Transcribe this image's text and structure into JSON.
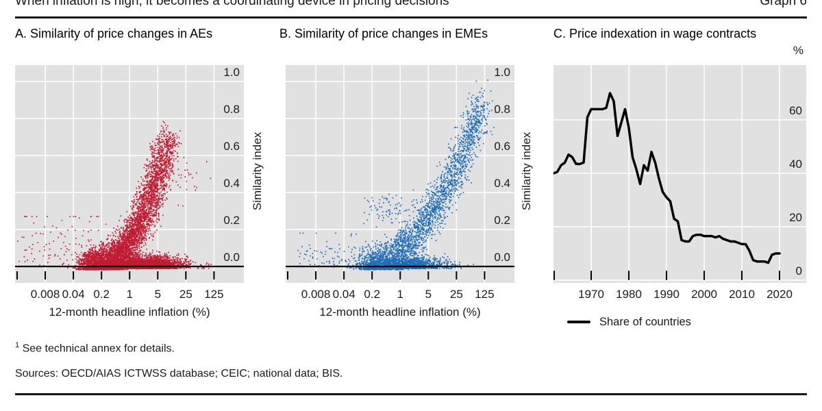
{
  "header": {
    "title": "When inflation is high, it becomes a coordinating device in pricing decisions",
    "graph_label": "Graph 6"
  },
  "chart_data": [
    {
      "id": "A",
      "type": "scatter",
      "title": "A. Similarity of price changes in AEs",
      "color": "#c11b34",
      "xlabel": "12-month headline inflation (%)",
      "ylabel": "Similarity index",
      "xscale": "log",
      "xtick_labels": [
        "0.008",
        "0.04",
        "0.2",
        "1",
        "5",
        "25",
        "125"
      ],
      "xlim": [
        0.0016,
        625
      ],
      "yticks": [
        "0.0",
        "0.2",
        "0.4",
        "0.6",
        "0.8",
        "1.0"
      ],
      "ylim": [
        -0.07,
        1.09
      ],
      "grid": true,
      "n_points_approx": 8500,
      "trend_profile": [
        {
          "x": 0.2,
          "y": 0.02
        },
        {
          "x": 1,
          "y": 0.06
        },
        {
          "x": 2,
          "y": 0.14
        },
        {
          "x": 5,
          "y": 0.33
        },
        {
          "x": 8,
          "y": 0.55
        },
        {
          "x": 10,
          "y": 0.7
        }
      ],
      "generator": {
        "seed": 11,
        "clusters": [
          {
            "kind": "arm",
            "n": 5200,
            "t_pow": 1.15,
            "lx0": -1.05,
            "lx_span": 2.0,
            "lx_sd": 0.16,
            "y_max": 0.7,
            "y_pow": 2.6,
            "y_sd": 0.045
          },
          {
            "kind": "floor",
            "n": 3200,
            "lx_mean": 0.35,
            "lx_sd": 0.5,
            "y_sd": 0.03
          },
          {
            "kind": "spray",
            "n": 110,
            "lx_min": -2.85,
            "lx_max": -0.55,
            "y_sd": 0.085,
            "y_cap": 0.27
          },
          {
            "kind": "blob",
            "n": 28,
            "lx_mean": 1.38,
            "lx_sd": 0.2,
            "y_mean": 0.47,
            "y_sd": 0.055
          }
        ]
      }
    },
    {
      "id": "B",
      "type": "scatter",
      "title": "B. Similarity of price changes in EMEs",
      "color": "#1e6cb5",
      "xlabel": "12-month headline inflation (%)",
      "ylabel": "Similarity index",
      "xscale": "log",
      "xtick_labels": [
        "0.008",
        "0.04",
        "0.2",
        "1",
        "5",
        "25",
        "125"
      ],
      "xlim": [
        0.0016,
        625
      ],
      "yticks": [
        "0.0",
        "0.2",
        "0.4",
        "0.6",
        "0.8",
        "1.0"
      ],
      "ylim": [
        -0.07,
        1.09
      ],
      "grid": true,
      "n_points_approx": 4200,
      "trend_profile": [
        {
          "x": 0.2,
          "y": 0.03
        },
        {
          "x": 1,
          "y": 0.1
        },
        {
          "x": 5,
          "y": 0.27
        },
        {
          "x": 25,
          "y": 0.55
        },
        {
          "x": 100,
          "y": 0.86
        }
      ],
      "generator": {
        "seed": 23,
        "clusters": [
          {
            "kind": "arm",
            "n": 2500,
            "t_pow": 1.0,
            "lx0": -0.9,
            "lx_span": 2.95,
            "lx_sd": 0.15,
            "y_max": 0.88,
            "y_pow": 2.0,
            "y_sd": 0.05
          },
          {
            "kind": "floor",
            "n": 1500,
            "lx_mean": 0.1,
            "lx_sd": 0.55,
            "y_sd": 0.03
          },
          {
            "kind": "spray",
            "n": 90,
            "lx_min": -2.6,
            "lx_max": -0.55,
            "y_sd": 0.05,
            "y_cap": 0.18
          },
          {
            "kind": "blob",
            "n": 75,
            "lx_mean": -0.35,
            "lx_sd": 0.3,
            "y_mean": 0.3,
            "y_sd": 0.045
          }
        ]
      }
    },
    {
      "id": "C",
      "type": "line",
      "title": "C. Price indexation in wage contracts",
      "unit": "%",
      "color": "#000000",
      "legend": "Share of countries",
      "xticks": [
        1970,
        1980,
        1990,
        2000,
        2010,
        2020
      ],
      "yticks": [
        0,
        20,
        40,
        60
      ],
      "ylim": [
        0,
        80
      ],
      "xlim": [
        1960,
        2027
      ],
      "grid": true,
      "series": [
        {
          "name": "Share of countries",
          "x_start": 1960,
          "x_step": 1,
          "values": [
            40,
            40.5,
            43,
            44,
            47,
            46,
            43.5,
            43.5,
            44,
            61,
            64,
            64,
            64,
            64,
            64.5,
            70,
            67,
            54,
            59,
            64,
            57,
            46,
            41.5,
            36,
            43,
            41,
            48,
            44,
            38,
            33,
            31,
            29.5,
            23,
            22,
            15,
            14.5,
            14.5,
            16.5,
            17,
            17,
            16.5,
            16.5,
            16.5,
            16,
            16.5,
            15.5,
            15,
            14.5,
            14.5,
            14,
            13.5,
            13.5,
            11,
            7.5,
            7,
            7,
            7,
            6.5,
            9.5,
            10,
            10
          ]
        }
      ]
    }
  ],
  "footnote": {
    "marker": "1",
    "text": "See technical annex for details."
  },
  "sources_line": "Sources: OECD/AIAS ICTWSS database; CEIC; national data; BIS.",
  "colors": {
    "plot_bg": "#e1e1e1",
    "gridline": "#ffffff",
    "text": "#1a1a1a",
    "red": "#c11b34",
    "blue": "#1e6cb5",
    "line_black": "#000000"
  }
}
